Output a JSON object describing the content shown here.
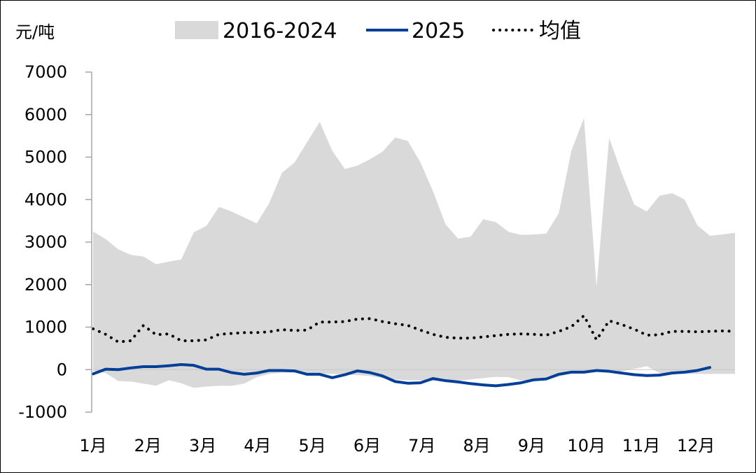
{
  "chart_data": {
    "type": "area",
    "unit_label": "元/吨",
    "ylim": [
      -1000,
      7000
    ],
    "yticks": [
      7000,
      6000,
      5000,
      4000,
      3000,
      2000,
      1000,
      0,
      -1000
    ],
    "xtick_labels": [
      "1月",
      "2月",
      "3月",
      "4月",
      "5月",
      "6月",
      "7月",
      "8月",
      "9月",
      "10月",
      "11月",
      "12月"
    ],
    "legend": {
      "position": "top",
      "range_label": "2016-2024",
      "current_label": "2025",
      "mean_label": "均值"
    },
    "colors": {
      "range": "#d9d9d9",
      "current": "#003f98",
      "mean": "#000000"
    },
    "x_points_per_year": 52,
    "series": [
      {
        "name": "2016-2024 max",
        "values": [
          3250,
          3070,
          2830,
          2700,
          2660,
          2480,
          2540,
          2590,
          3230,
          3380,
          3830,
          3720,
          3580,
          3440,
          3920,
          4630,
          4870,
          5350,
          5830,
          5150,
          4720,
          4800,
          4950,
          5130,
          5460,
          5380,
          4880,
          4200,
          3420,
          3080,
          3130,
          3540,
          3470,
          3240,
          3170,
          3180,
          3200,
          3680,
          5150,
          5920,
          1950,
          5450,
          4620,
          3880,
          3720,
          4090,
          4150,
          4000,
          3400,
          3150,
          3180,
          3220
        ]
      },
      {
        "name": "2016-2024 min",
        "values": [
          -30,
          -80,
          -270,
          -280,
          -330,
          -380,
          -250,
          -320,
          -430,
          -400,
          -380,
          -380,
          -330,
          -180,
          -100,
          -70,
          -70,
          -70,
          -100,
          -100,
          -120,
          -130,
          -150,
          -200,
          -230,
          -250,
          -250,
          -270,
          -270,
          -260,
          -230,
          -200,
          -170,
          -180,
          -250,
          -260,
          -230,
          -170,
          -80,
          -60,
          -40,
          -60,
          -40,
          20,
          80,
          -80,
          -100,
          -100,
          -100,
          -100,
          -100,
          -100
        ]
      },
      {
        "name": "2025",
        "values": [
          -100,
          10,
          0,
          40,
          70,
          70,
          90,
          120,
          100,
          10,
          10,
          -70,
          -110,
          -80,
          -20,
          -20,
          -30,
          -110,
          -110,
          -190,
          -120,
          -30,
          -70,
          -150,
          -280,
          -320,
          -310,
          -210,
          -260,
          -290,
          -330,
          -360,
          -380,
          -350,
          -310,
          -240,
          -220,
          -110,
          -60,
          -60,
          -20,
          -40,
          -80,
          -120,
          -140,
          -130,
          -80,
          -60,
          -20,
          50
        ]
      },
      {
        "name": "均值",
        "values": [
          960,
          830,
          650,
          680,
          1040,
          820,
          840,
          680,
          680,
          700,
          830,
          850,
          870,
          870,
          890,
          940,
          920,
          930,
          1120,
          1120,
          1130,
          1190,
          1200,
          1130,
          1080,
          1040,
          930,
          830,
          760,
          740,
          740,
          770,
          800,
          830,
          840,
          830,
          810,
          900,
          1010,
          1270,
          700,
          1150,
          1060,
          950,
          810,
          820,
          900,
          900,
          890,
          900,
          910,
          900
        ]
      }
    ]
  }
}
